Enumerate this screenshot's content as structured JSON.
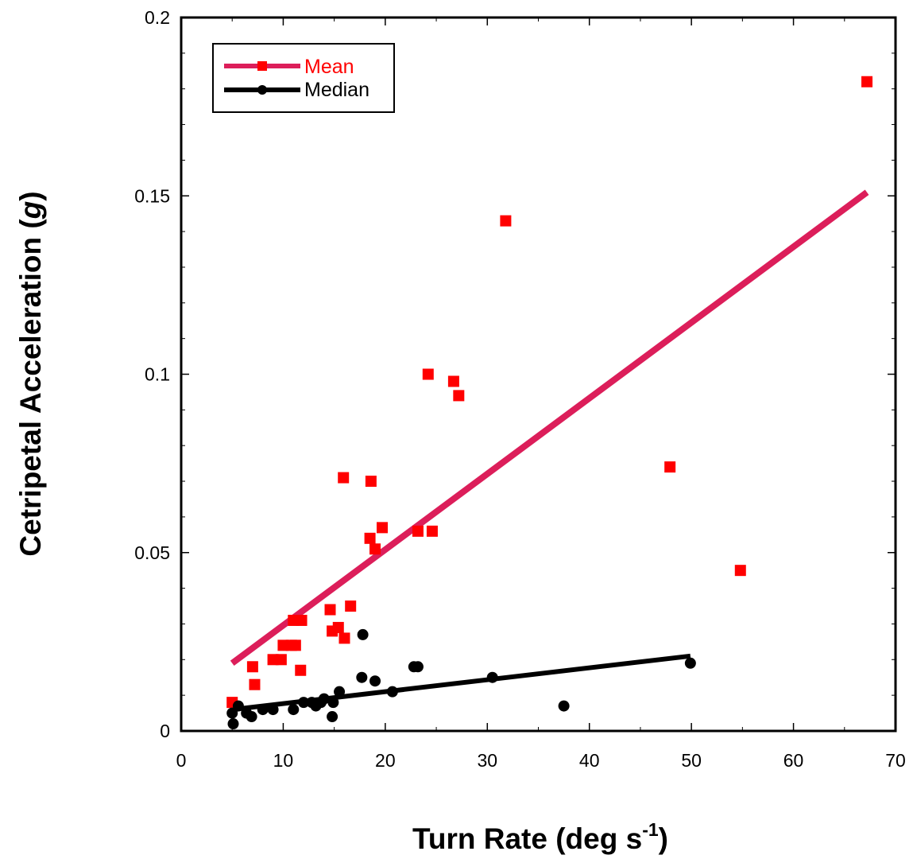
{
  "chart_data": {
    "type": "scatter",
    "xlabel": "Turn Rate (deg s",
    "xlabel_sup": "-1",
    "xlabel_close": ")",
    "ylabel_main": "Cetripetal Acceleration (",
    "ylabel_italic": "g",
    "ylabel_close": ")",
    "xlim": [
      0,
      70
    ],
    "ylim": [
      0,
      0.2
    ],
    "x_ticks": [
      0,
      10,
      20,
      30,
      40,
      50,
      60,
      70
    ],
    "x_tick_labels": [
      "0",
      "10",
      "20",
      "30",
      "40",
      "50",
      "60",
      "70"
    ],
    "y_ticks": [
      0,
      0.05,
      0.1,
      0.15,
      0.2
    ],
    "y_tick_labels": [
      "0",
      "0.05",
      "0.1",
      "0.15",
      "0.2"
    ],
    "legend_position": "top-left",
    "grid": false,
    "series": [
      {
        "name": "Mean",
        "marker": "square",
        "color": "#ff0000",
        "line_color": "#dc1e5a",
        "points": [
          [
            5,
            0.008
          ],
          [
            7,
            0.018
          ],
          [
            7.2,
            0.013
          ],
          [
            9,
            0.02
          ],
          [
            9.8,
            0.02
          ],
          [
            10,
            0.024
          ],
          [
            10.8,
            0.024
          ],
          [
            11,
            0.031
          ],
          [
            11.2,
            0.024
          ],
          [
            11.7,
            0.017
          ],
          [
            11.8,
            0.031
          ],
          [
            14.6,
            0.034
          ],
          [
            14.8,
            0.028
          ],
          [
            15.4,
            0.029
          ],
          [
            15.9,
            0.071
          ],
          [
            16,
            0.026
          ],
          [
            16.6,
            0.035
          ],
          [
            18.5,
            0.054
          ],
          [
            18.6,
            0.07
          ],
          [
            19,
            0.051
          ],
          [
            19.7,
            0.057
          ],
          [
            23.2,
            0.056
          ],
          [
            24.2,
            0.1
          ],
          [
            24.6,
            0.056
          ],
          [
            26.7,
            0.098
          ],
          [
            27.2,
            0.094
          ],
          [
            31.8,
            0.143
          ],
          [
            47.9,
            0.074
          ],
          [
            54.8,
            0.045
          ],
          [
            67.2,
            0.182
          ]
        ],
        "trend": [
          [
            5,
            0.019
          ],
          [
            67.2,
            0.151
          ]
        ]
      },
      {
        "name": "Median",
        "marker": "circle",
        "color": "#000000",
        "line_color": "#000000",
        "points": [
          [
            5,
            0.005
          ],
          [
            5.1,
            0.002
          ],
          [
            5.6,
            0.007
          ],
          [
            6.4,
            0.005
          ],
          [
            6.9,
            0.004
          ],
          [
            8,
            0.006
          ],
          [
            9,
            0.006
          ],
          [
            11,
            0.006
          ],
          [
            12,
            0.008
          ],
          [
            12.8,
            0.008
          ],
          [
            13.2,
            0.007
          ],
          [
            13.7,
            0.008
          ],
          [
            14,
            0.009
          ],
          [
            14.8,
            0.004
          ],
          [
            14.9,
            0.008
          ],
          [
            15.5,
            0.011
          ],
          [
            17.7,
            0.015
          ],
          [
            17.8,
            0.027
          ],
          [
            19,
            0.014
          ],
          [
            20.7,
            0.011
          ],
          [
            22.8,
            0.018
          ],
          [
            23.2,
            0.018
          ],
          [
            30.5,
            0.015
          ],
          [
            37.5,
            0.007
          ],
          [
            49.9,
            0.019
          ]
        ],
        "trend": [
          [
            5,
            0.006
          ],
          [
            49.9,
            0.021
          ]
        ]
      }
    ]
  }
}
